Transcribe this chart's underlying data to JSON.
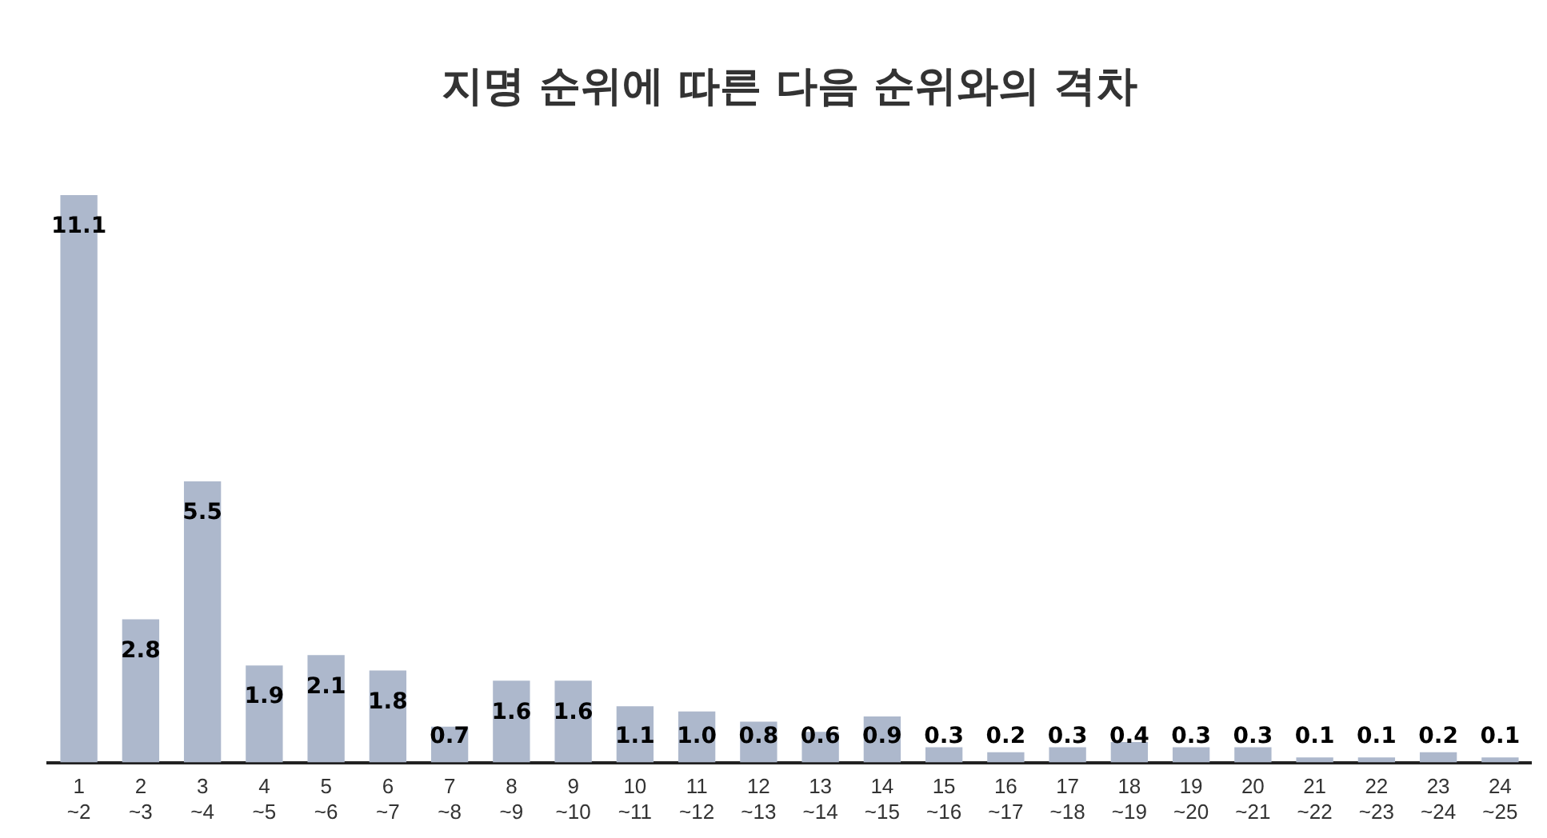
{
  "chart_data": {
    "type": "bar",
    "title": "지명 순위에 따른 다음 순위와의 격차",
    "categories": [
      "1\n~2",
      "2\n~3",
      "3\n~4",
      "4\n~5",
      "5\n~6",
      "6\n~7",
      "7\n~8",
      "8\n~9",
      "9\n~10",
      "10\n~11",
      "11\n~12",
      "12\n~13",
      "13\n~14",
      "14\n~15",
      "15\n~16",
      "16\n~17",
      "17\n~18",
      "18\n~19",
      "19\n~20",
      "20\n~21",
      "21\n~22",
      "22\n~23",
      "23\n~24",
      "24\n~25"
    ],
    "values": [
      11.1,
      2.8,
      5.5,
      1.9,
      2.1,
      1.8,
      0.7,
      1.6,
      1.6,
      1.1,
      1.0,
      0.8,
      0.6,
      0.9,
      0.3,
      0.2,
      0.3,
      0.4,
      0.3,
      0.3,
      0.1,
      0.1,
      0.2,
      0.1
    ],
    "value_labels": [
      "11.1",
      "2.8",
      "5.5",
      "1.9",
      "2.1",
      "1.8",
      "0.7",
      "1.6",
      "1.6",
      "1.1",
      "1.0",
      "0.8",
      "0.6",
      "0.9",
      "0.3",
      "0.2",
      "0.3",
      "0.4",
      "0.3",
      "0.3",
      "0.1",
      "0.1",
      "0.2",
      "0.1"
    ],
    "color": "#adb8cc",
    "grid": false,
    "legend": false
  }
}
